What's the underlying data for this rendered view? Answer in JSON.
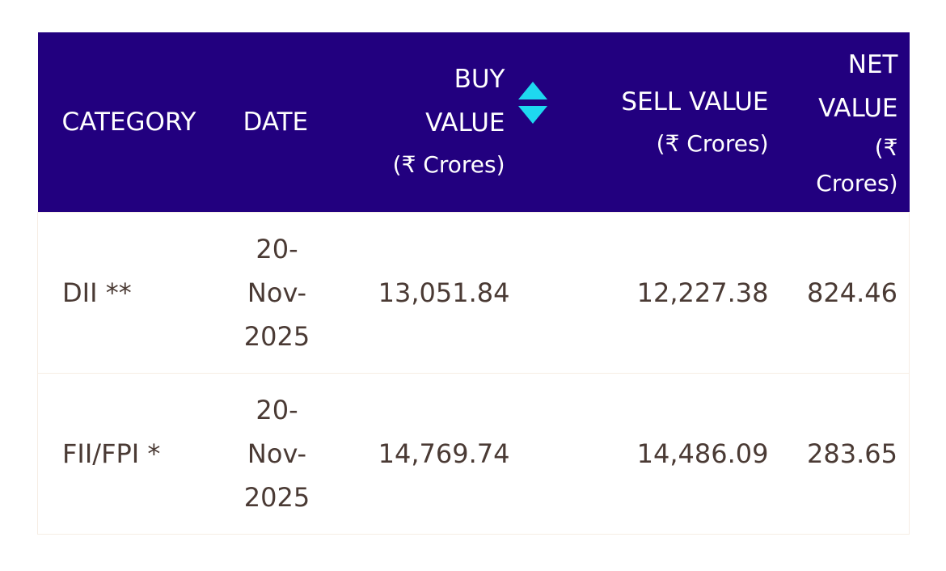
{
  "table": {
    "header_bg": "#22007f",
    "sort_icon_color": "#1ed8f0",
    "columns": {
      "category": "CATEGORY",
      "date": "DATE",
      "buy_line1": "BUY",
      "buy_line2": "VALUE",
      "buy_unit": "(₹ Crores)",
      "sell_line1": "SELL VALUE",
      "sell_unit": "(₹ Crores)",
      "net_line1": "NET",
      "net_line2": "VALUE",
      "net_unit1": "(₹",
      "net_unit2": "Crores)"
    },
    "sort_icon": "sort-up-down-icon",
    "rows": [
      {
        "category": "DII **",
        "date": [
          "20-",
          "Nov-",
          "2025"
        ],
        "buy": "13,051.84",
        "sell": "12,227.38",
        "net": "824.46"
      },
      {
        "category": "FII/FPI *",
        "date": [
          "20-",
          "Nov-",
          "2025"
        ],
        "buy": "14,769.74",
        "sell": "14,486.09",
        "net": "283.65"
      }
    ]
  }
}
